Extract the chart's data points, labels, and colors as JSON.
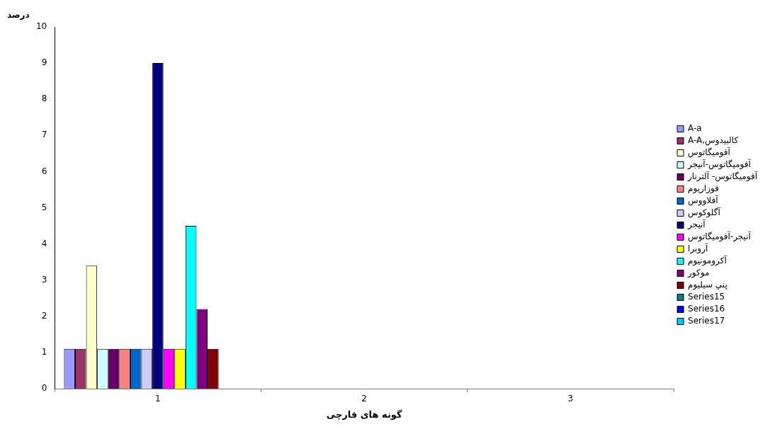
{
  "chart_data": {
    "type": "bar",
    "ylabel": "درصد",
    "xlabel": "گونه های قارچی",
    "categories": [
      "1",
      "2",
      "3"
    ],
    "series": [
      {
        "name": "A-a",
        "color": "#9999ff",
        "values": [
          1.1,
          null,
          null
        ]
      },
      {
        "name": "A-A,كالبيدوس",
        "color": "#993366",
        "values": [
          1.1,
          null,
          null
        ]
      },
      {
        "name": "آفوميگاتوس",
        "color": "#ffffcc",
        "values": [
          3.4,
          null,
          null
        ]
      },
      {
        "name": "آفوميگاتوس-آنيجر",
        "color": "#ccffff",
        "values": [
          1.1,
          null,
          null
        ]
      },
      {
        "name": "آفوميگاتوس- آلترنار",
        "color": "#660066",
        "values": [
          1.1,
          null,
          null
        ]
      },
      {
        "name": "فوزاريوم",
        "color": "#ff8080",
        "values": [
          1.1,
          null,
          null
        ]
      },
      {
        "name": "آفلاووس",
        "color": "#0066cc",
        "values": [
          1.1,
          null,
          null
        ]
      },
      {
        "name": "آگلوكوس",
        "color": "#ccccff",
        "values": [
          1.1,
          null,
          null
        ]
      },
      {
        "name": "آنيجر",
        "color": "#000080",
        "values": [
          9,
          null,
          null
        ]
      },
      {
        "name": "آنيجر-آفوميگاتوس",
        "color": "#ff00ff",
        "values": [
          1.1,
          null,
          null
        ]
      },
      {
        "name": "آروبرا",
        "color": "#ffff00",
        "values": [
          1.1,
          null,
          null
        ]
      },
      {
        "name": "آكرومونيوم",
        "color": "#00ffff",
        "values": [
          4.5,
          null,
          null
        ]
      },
      {
        "name": "موكور",
        "color": "#800080",
        "values": [
          2.2,
          null,
          null
        ]
      },
      {
        "name": "پني سيليوم",
        "color": "#800000",
        "values": [
          1.1,
          null,
          null
        ]
      },
      {
        "name": "Series15",
        "color": "#008080",
        "values": [
          null,
          null,
          null
        ]
      },
      {
        "name": "Series16",
        "color": "#0000ff",
        "values": [
          null,
          null,
          null
        ]
      },
      {
        "name": "Series17",
        "color": "#00ccff",
        "values": [
          null,
          null,
          null
        ]
      }
    ],
    "ylim": [
      0,
      10
    ],
    "yticks": [
      0,
      1,
      2,
      3,
      4,
      5,
      6,
      7,
      8,
      9,
      10
    ],
    "legend": "right"
  }
}
